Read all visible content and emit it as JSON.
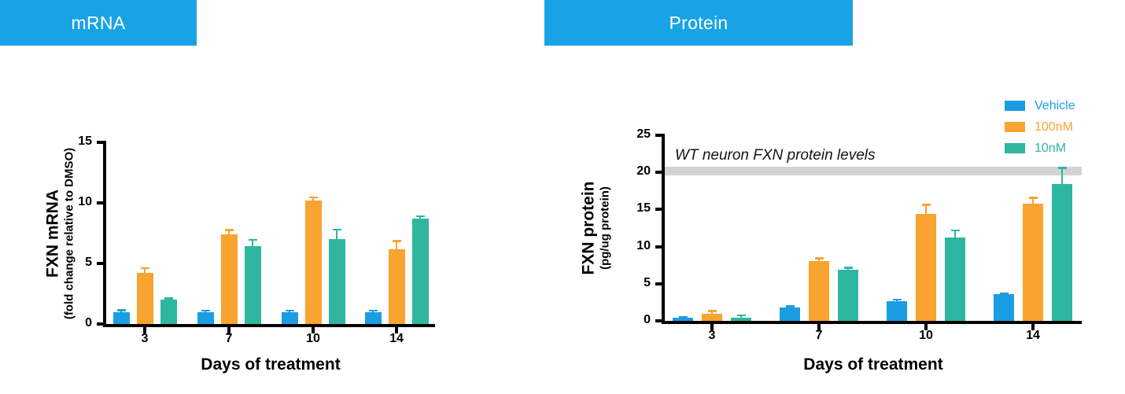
{
  "panels": [
    {
      "title": "mRNA"
    },
    {
      "title": "Protein"
    }
  ],
  "colors": {
    "header": "#18A3E6",
    "vehicle": "#1B9DE2",
    "dose_100nM": "#F9A331",
    "dose_10nM": "#2EB6A0",
    "reference_band": "#D3D3D3",
    "axis": "#000000"
  },
  "legend": {
    "items": [
      "Vehicle",
      "100nM",
      "10nM"
    ]
  },
  "chart_data": [
    {
      "type": "bar",
      "title": "mRNA",
      "categories": [
        "3",
        "7",
        "10",
        "14"
      ],
      "series": [
        {
          "name": "Vehicle",
          "color": "#1B9DE2",
          "values": [
            1.0,
            1.0,
            1.0,
            1.0
          ],
          "errors": [
            0.15,
            0.1,
            0.1,
            0.1
          ]
        },
        {
          "name": "100nM",
          "color": "#F9A331",
          "values": [
            4.2,
            7.4,
            10.2,
            6.2
          ],
          "errors": [
            0.4,
            0.35,
            0.25,
            0.65
          ]
        },
        {
          "name": "10nM",
          "color": "#2EB6A0",
          "values": [
            2.0,
            6.4,
            7.0,
            8.7
          ],
          "errors": [
            0.1,
            0.55,
            0.8,
            0.2
          ]
        }
      ],
      "xlabel": "Days of treatment",
      "ylabel": "FXN mRNA",
      "ylabel2": "(fold change relative to DMSO)",
      "yticks": [
        0,
        5,
        10,
        15
      ],
      "ylim": [
        0,
        15
      ],
      "grid": false,
      "legend_position": "none"
    },
    {
      "type": "bar",
      "title": "Protein",
      "categories": [
        "3",
        "7",
        "10",
        "14"
      ],
      "series": [
        {
          "name": "Vehicle",
          "color": "#1B9DE2",
          "values": [
            0.4,
            1.8,
            2.7,
            3.6
          ],
          "errors": [
            0.1,
            0.15,
            0.15,
            0.1
          ]
        },
        {
          "name": "100nM",
          "color": "#F9A331",
          "values": [
            1.0,
            8.1,
            14.4,
            15.8
          ],
          "errors": [
            0.35,
            0.3,
            1.2,
            0.8
          ]
        },
        {
          "name": "10nM",
          "color": "#2EB6A0",
          "values": [
            0.45,
            6.9,
            11.2,
            18.4
          ],
          "errors": [
            0.3,
            0.25,
            1.0,
            2.2
          ]
        }
      ],
      "xlabel": "Days of treatment",
      "ylabel": "FXN protein",
      "ylabel2": "(pg/ug protein)",
      "yticks": [
        0,
        5,
        10,
        15,
        20,
        25
      ],
      "ylim": [
        0,
        25
      ],
      "grid": false,
      "legend_position": "top-right",
      "reference_band": {
        "label": "WT neuron FXN protein levels",
        "y": 20,
        "band_height_units": 1.15
      }
    }
  ]
}
